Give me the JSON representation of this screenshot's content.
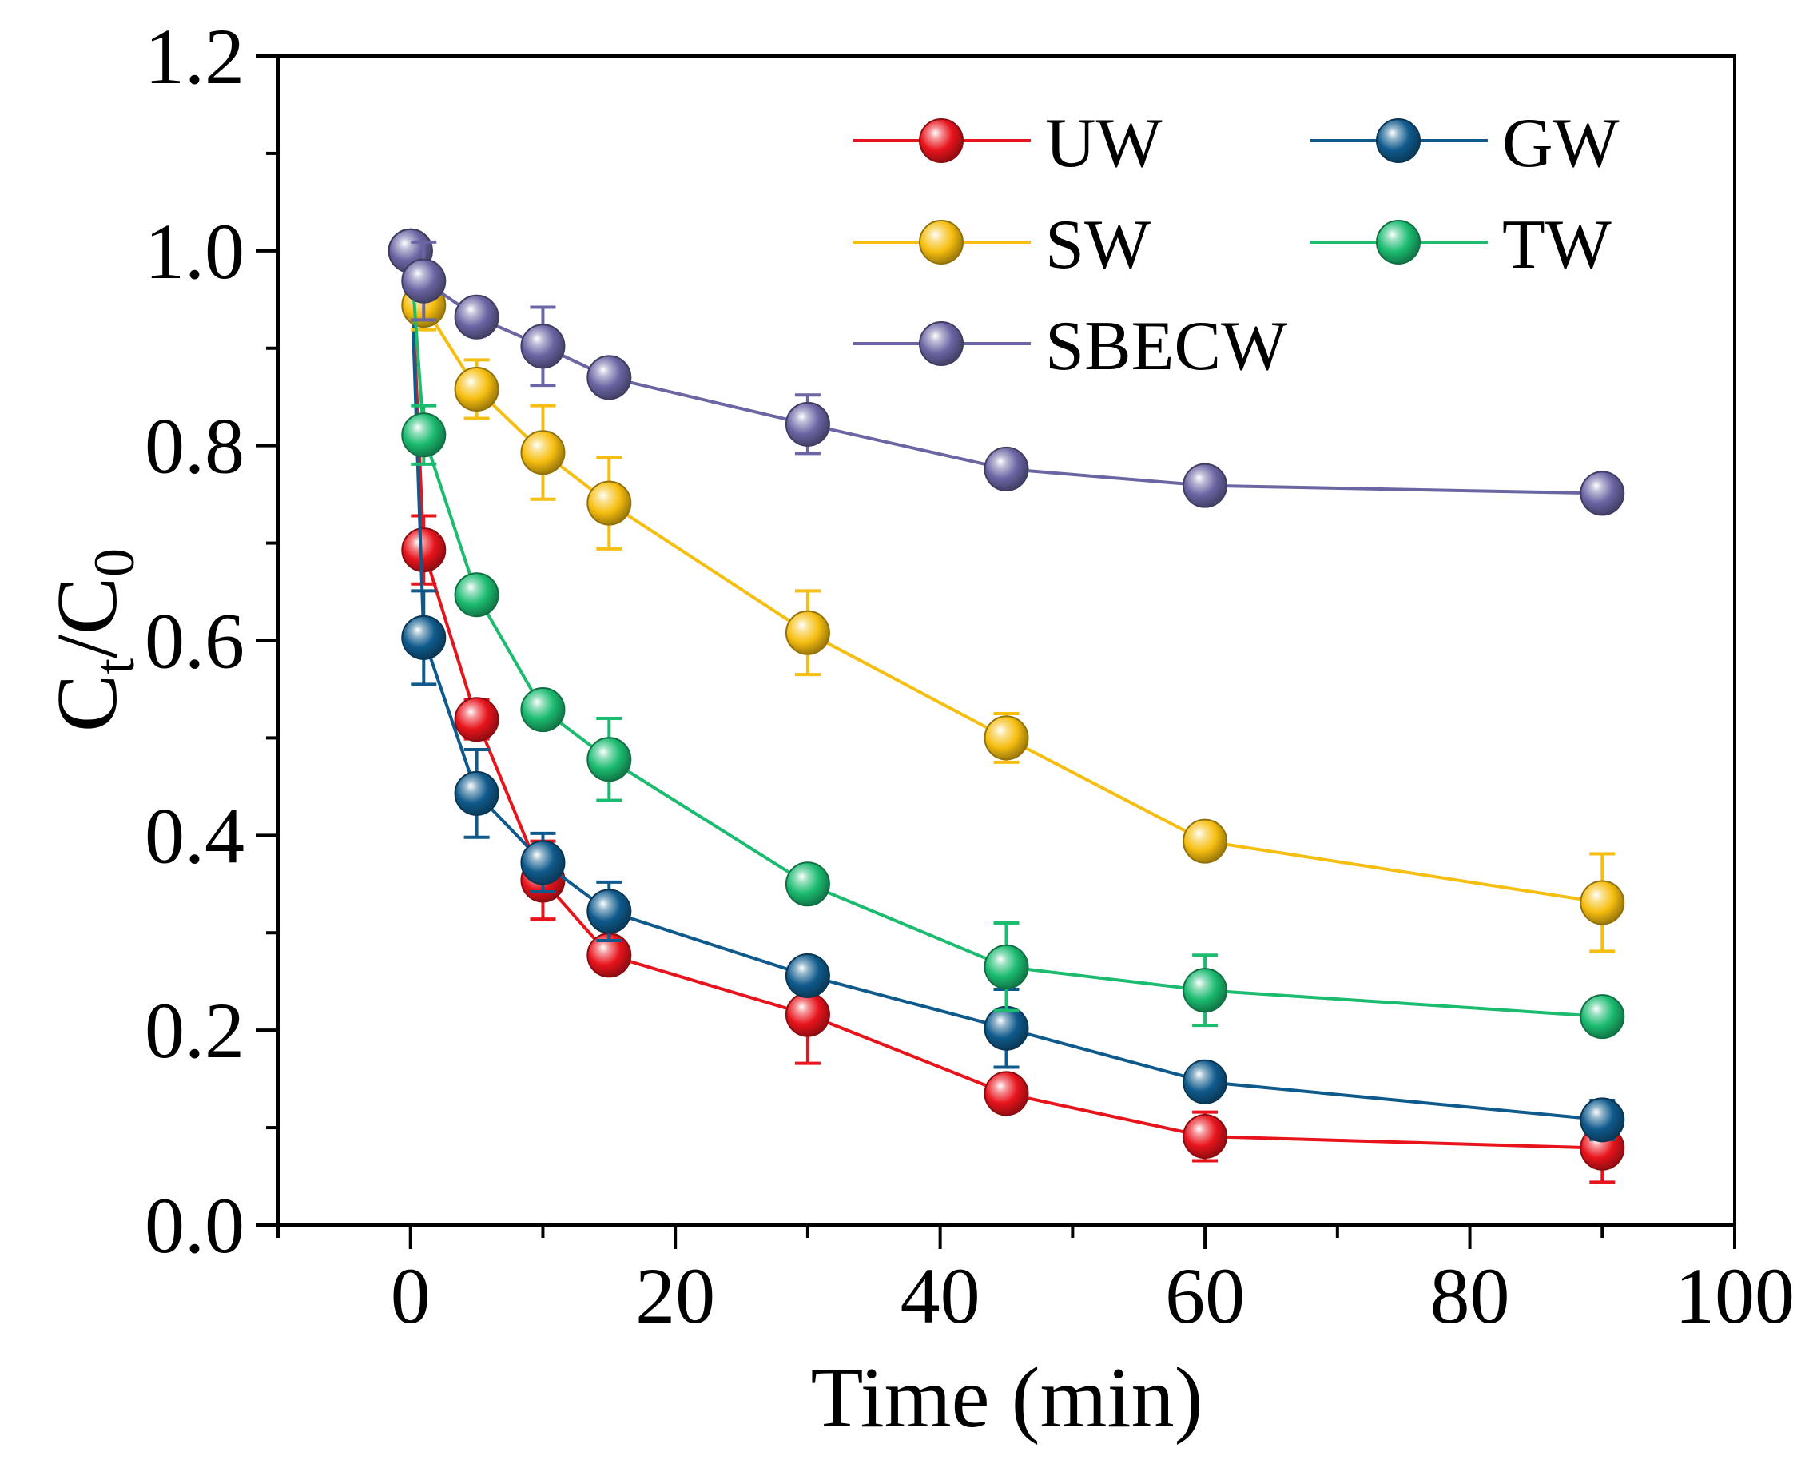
{
  "chart_data": {
    "type": "line",
    "xlabel": "Time (min)",
    "ylabel": "Ct/C0",
    "ylabel_parts": {
      "main": "C",
      "sub1": "t",
      "slash": "/C",
      "sub2": "0"
    },
    "xlim": [
      -10,
      100
    ],
    "ylim": [
      0,
      1.2
    ],
    "xticks": [
      0,
      20,
      40,
      60,
      80,
      100
    ],
    "xtick_labels": [
      "0",
      "20",
      "40",
      "60",
      "80",
      "100"
    ],
    "yticks": [
      0.0,
      0.2,
      0.4,
      0.6,
      0.8,
      1.0,
      1.2
    ],
    "ytick_labels": [
      "0.0",
      "0.2",
      "0.4",
      "0.6",
      "0.8",
      "1.0",
      "1.2"
    ],
    "legend_position": "top-right",
    "series": [
      {
        "name": "UW",
        "color": "#e8141c",
        "x": [
          0,
          1,
          5,
          10,
          15,
          30,
          45,
          60,
          90
        ],
        "y": [
          1.0,
          0.693,
          0.519,
          0.354,
          0.277,
          0.216,
          0.135,
          0.091,
          0.079
        ],
        "err": [
          0.01,
          0.035,
          0.02,
          0.04,
          0.015,
          0.05,
          0.012,
          0.025,
          0.035
        ]
      },
      {
        "name": "GW",
        "color": "#0f5a8c",
        "x": [
          0,
          1,
          5,
          10,
          15,
          30,
          45,
          60,
          90
        ],
        "y": [
          1.0,
          0.603,
          0.443,
          0.372,
          0.322,
          0.256,
          0.202,
          0.147,
          0.108
        ],
        "err": [
          0.01,
          0.048,
          0.045,
          0.03,
          0.03,
          0.012,
          0.04,
          0.012,
          0.02
        ]
      },
      {
        "name": "SW",
        "color": "#f6be10",
        "x": [
          0,
          1,
          5,
          10,
          15,
          30,
          45,
          60,
          90
        ],
        "y": [
          1.0,
          0.944,
          0.858,
          0.793,
          0.741,
          0.608,
          0.5,
          0.394,
          0.331
        ],
        "err": [
          0.01,
          0.025,
          0.03,
          0.048,
          0.047,
          0.043,
          0.025,
          0.012,
          0.05
        ]
      },
      {
        "name": "TW",
        "color": "#1bbb70",
        "x": [
          0,
          1,
          5,
          10,
          15,
          30,
          45,
          60,
          90
        ],
        "y": [
          1.0,
          0.811,
          0.647,
          0.529,
          0.478,
          0.35,
          0.265,
          0.241,
          0.214
        ],
        "err": [
          0.01,
          0.03,
          0.015,
          0.015,
          0.042,
          0.012,
          0.045,
          0.036,
          0.012
        ]
      },
      {
        "name": "SBECW",
        "color": "#6a65a3",
        "x": [
          0,
          1,
          5,
          10,
          15,
          30,
          45,
          60,
          90
        ],
        "y": [
          1.0,
          0.969,
          0.932,
          0.902,
          0.87,
          0.822,
          0.776,
          0.759,
          0.751
        ],
        "err": [
          0.01,
          0.04,
          0.015,
          0.04,
          0.012,
          0.03,
          0.01,
          0.01,
          0.01
        ]
      }
    ]
  }
}
